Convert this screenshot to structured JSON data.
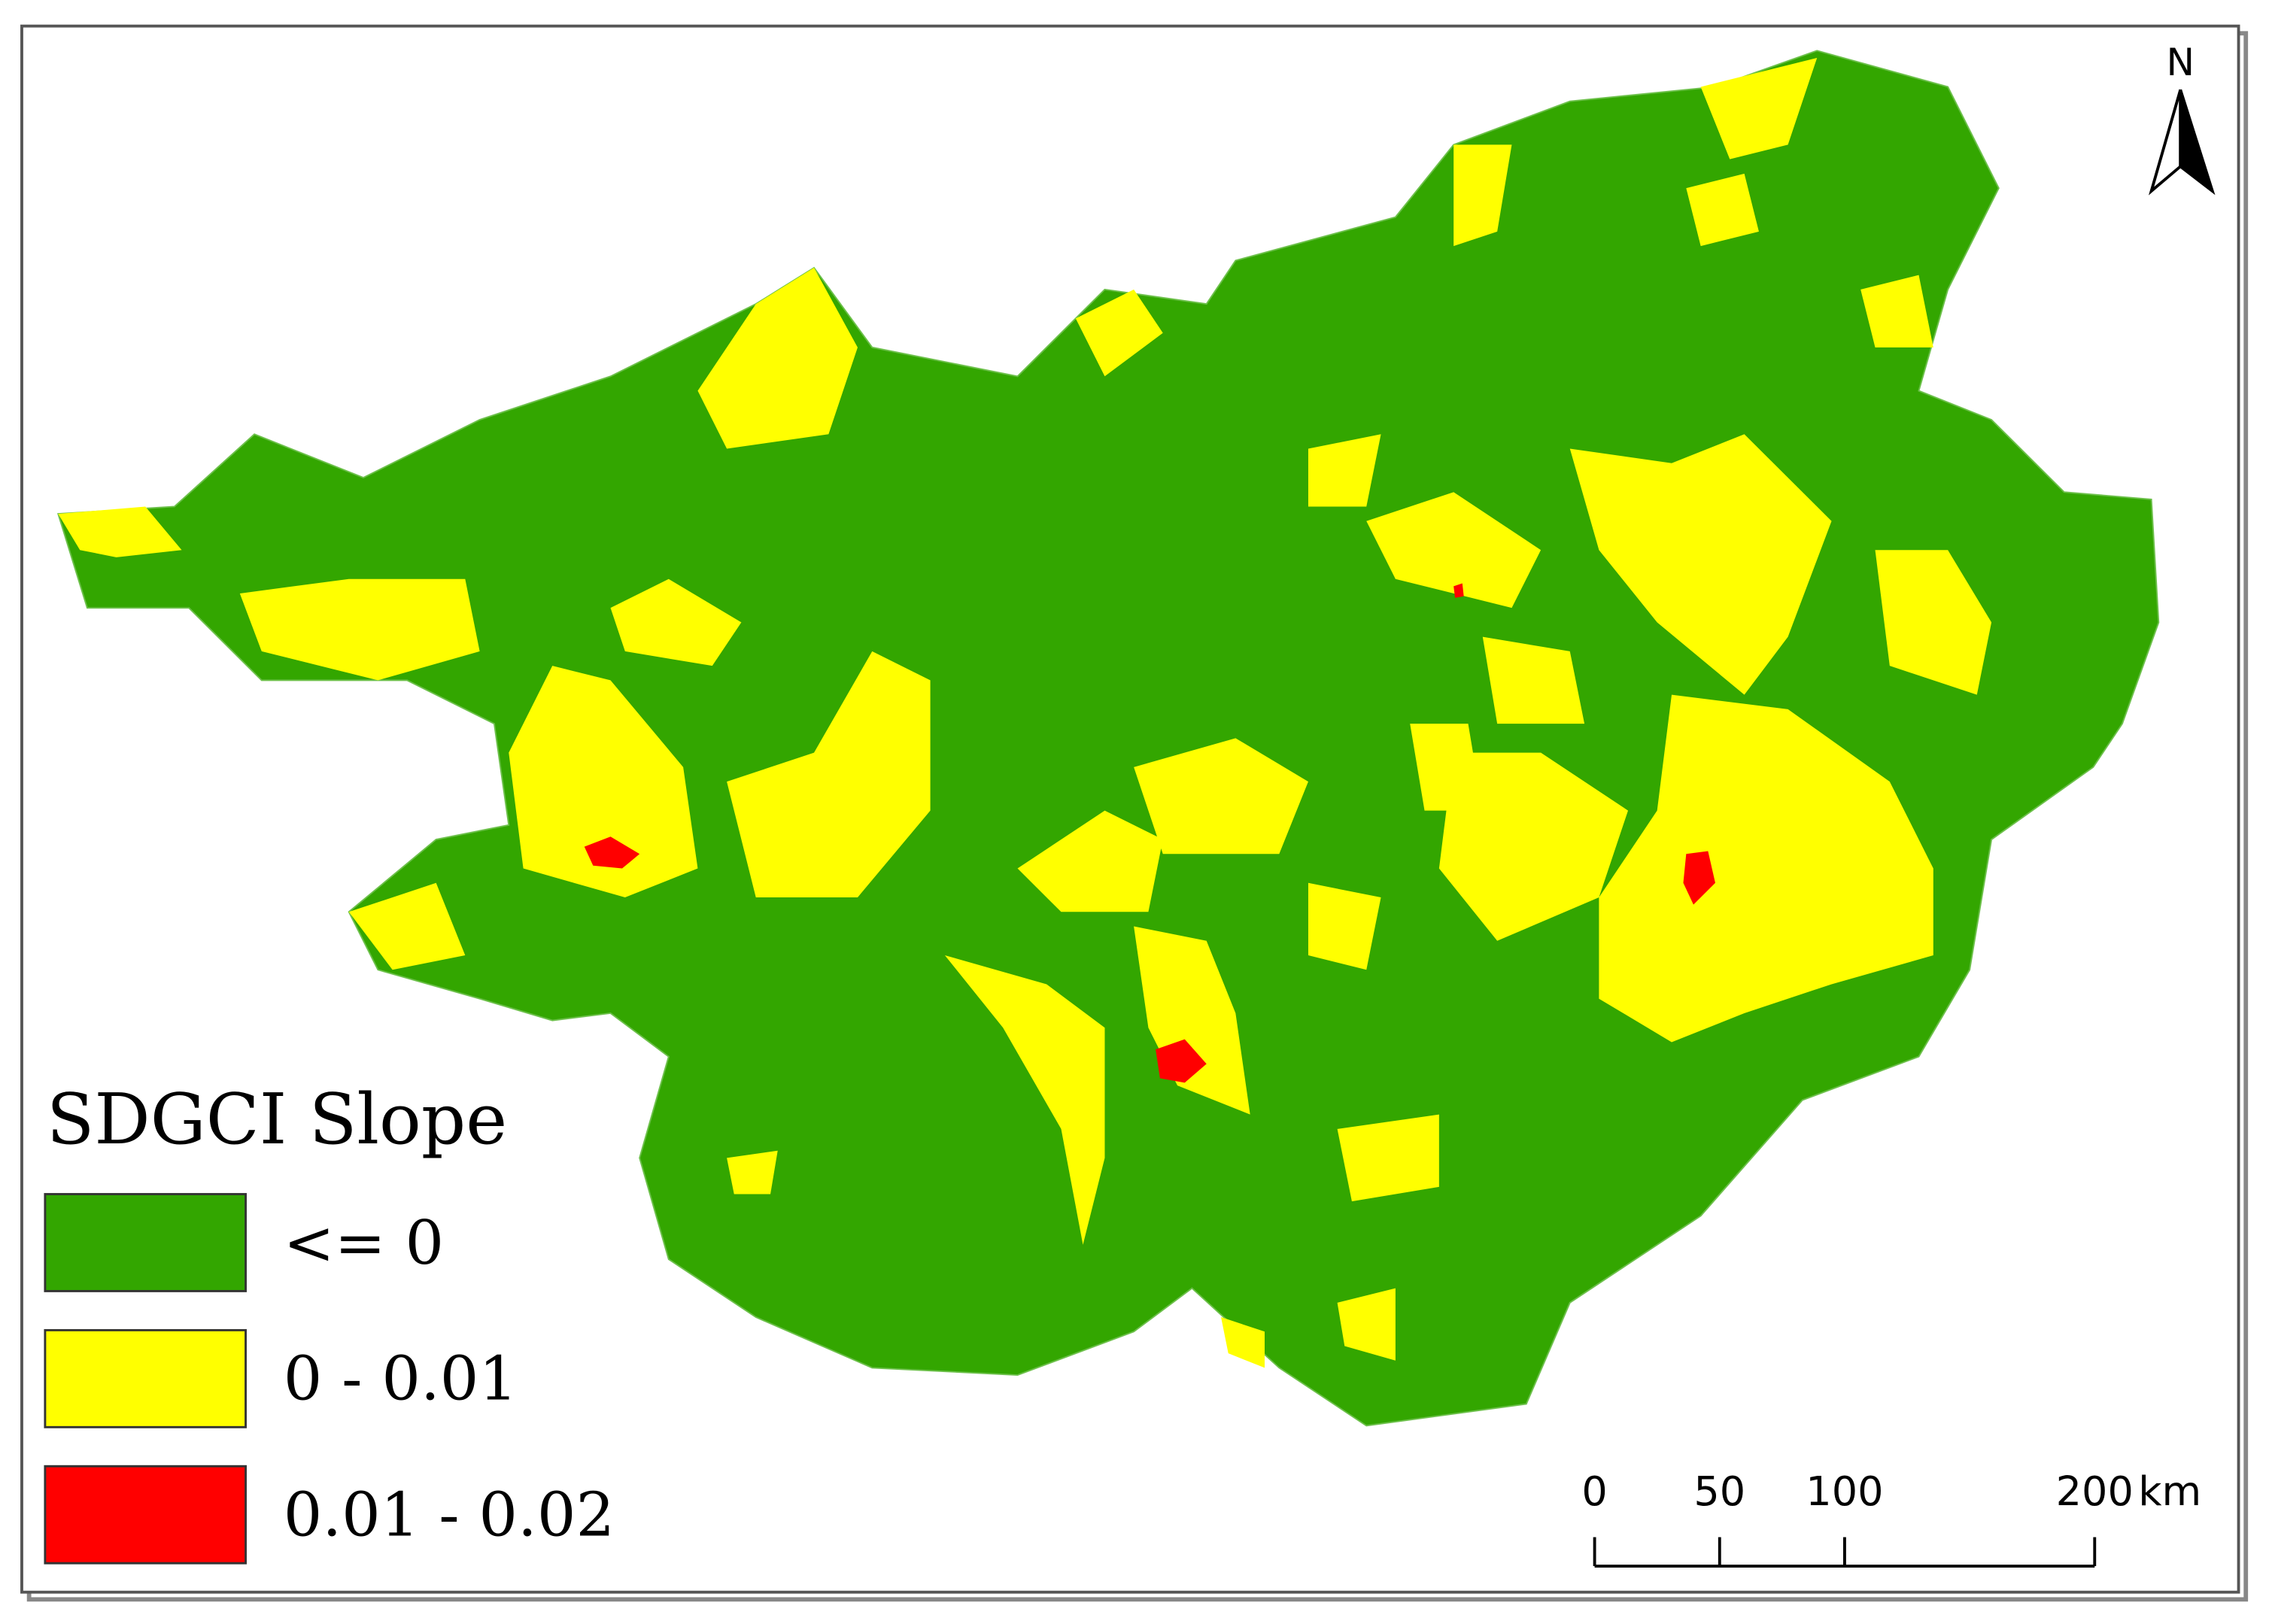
{
  "legend": {
    "title": "SDGCI Slope",
    "items": [
      {
        "label": "<= 0",
        "color": "#33a600"
      },
      {
        "label": "0 - 0.01",
        "color": "#ffff00"
      },
      {
        "label": "0.01 - 0.02",
        "color": "#ff0000"
      }
    ]
  },
  "north_arrow": {
    "label": "N"
  },
  "scale_bar": {
    "ticks": [
      0,
      50,
      100,
      200
    ],
    "unit": "km"
  }
}
